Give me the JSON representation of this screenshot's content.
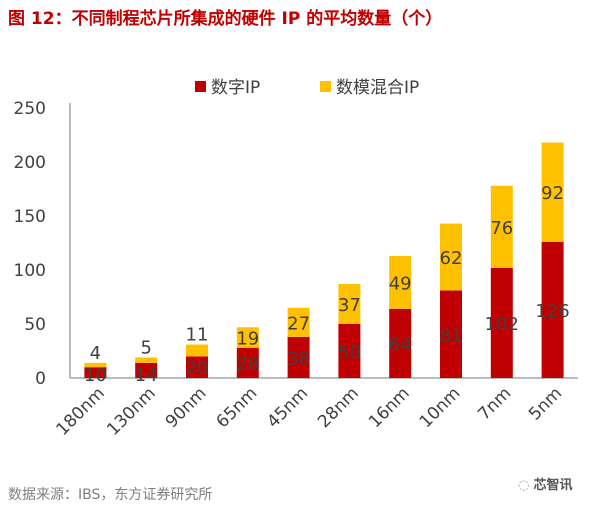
{
  "chart_data": {
    "type": "bar",
    "stacked": true,
    "title": "图 12：不同制程芯片所集成的硬件 IP 的平均数量（个）",
    "categories": [
      "180nm",
      "130nm",
      "90nm",
      "65nm",
      "45nm",
      "28nm",
      "16nm",
      "10nm",
      "7nm",
      "5nm"
    ],
    "series": [
      {
        "name": "数字IP",
        "color": "#C00000",
        "values": [
          10,
          14,
          20,
          28,
          38,
          50,
          64,
          81,
          102,
          126
        ]
      },
      {
        "name": "数模混合IP",
        "color": "#FFC000",
        "values": [
          4,
          5,
          11,
          19,
          27,
          37,
          49,
          62,
          76,
          92
        ]
      }
    ],
    "ylim": [
      0,
      250
    ],
    "yticks": [
      0,
      50,
      100,
      150,
      200,
      250
    ],
    "grid": false,
    "legend": "top-center",
    "source": "数据来源：IBS，东方证券研究所",
    "watermark": "芯智讯"
  }
}
